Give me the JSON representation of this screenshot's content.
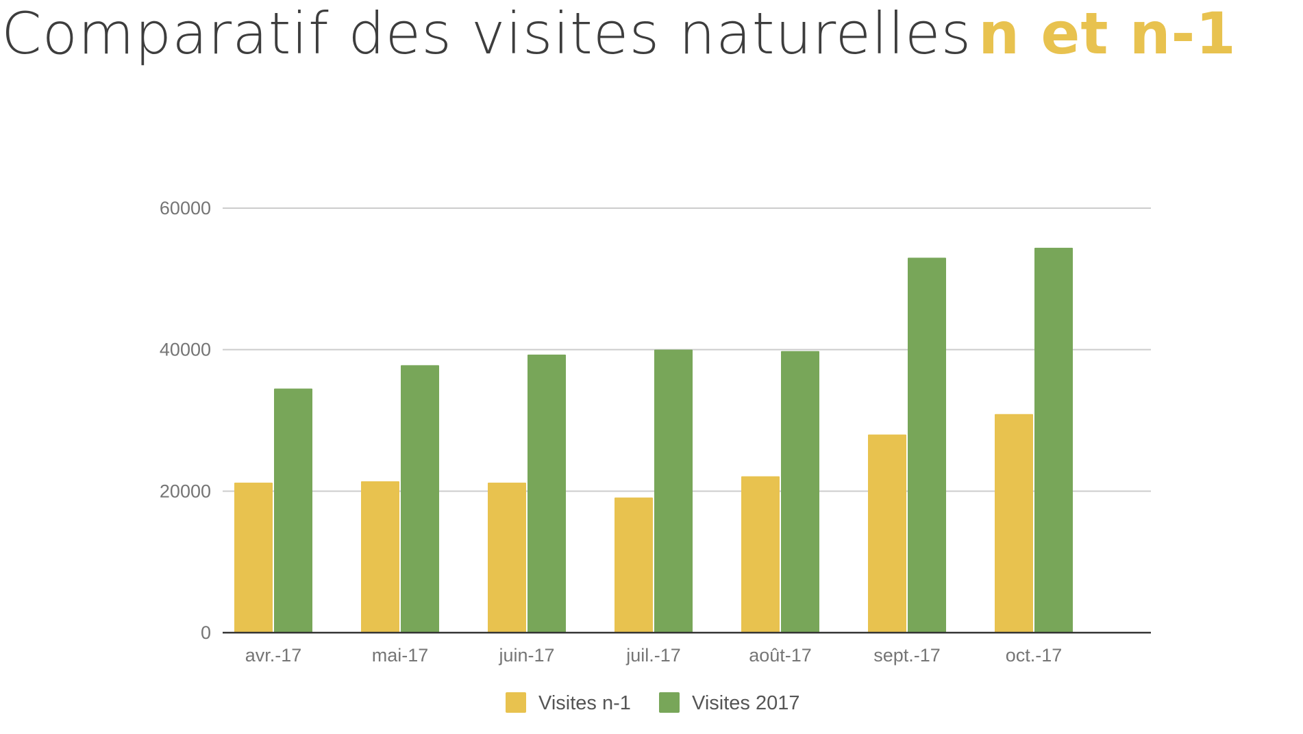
{
  "title": {
    "main": "Comparatif des visites naturelles",
    "accent": "n et n-1"
  },
  "colors": {
    "title": "#3d3d3d",
    "accent": "#e8c24f",
    "series_prev": "#e8c24f",
    "series_2017": "#78a659",
    "grid": "#cccccc",
    "axis": "#333333",
    "tick": "#757575"
  },
  "chart_data": {
    "type": "bar",
    "categories": [
      "avr.-17",
      "mai-17",
      "juin-17",
      "juil.-17",
      "août-17",
      "sept.-17",
      "oct.-17"
    ],
    "series": [
      {
        "name": "Visites n-1",
        "color": "#e8c24f",
        "values": [
          21200,
          21400,
          21200,
          19100,
          22100,
          28000,
          30900
        ]
      },
      {
        "name": "Visites 2017",
        "color": "#78a659",
        "values": [
          34500,
          37800,
          39300,
          40000,
          39800,
          53000,
          54400
        ]
      }
    ],
    "yticks": [
      "0",
      "20000",
      "40000",
      "60000"
    ],
    "ylim": [
      0,
      60000
    ],
    "grid": true,
    "legend": "bottom"
  }
}
